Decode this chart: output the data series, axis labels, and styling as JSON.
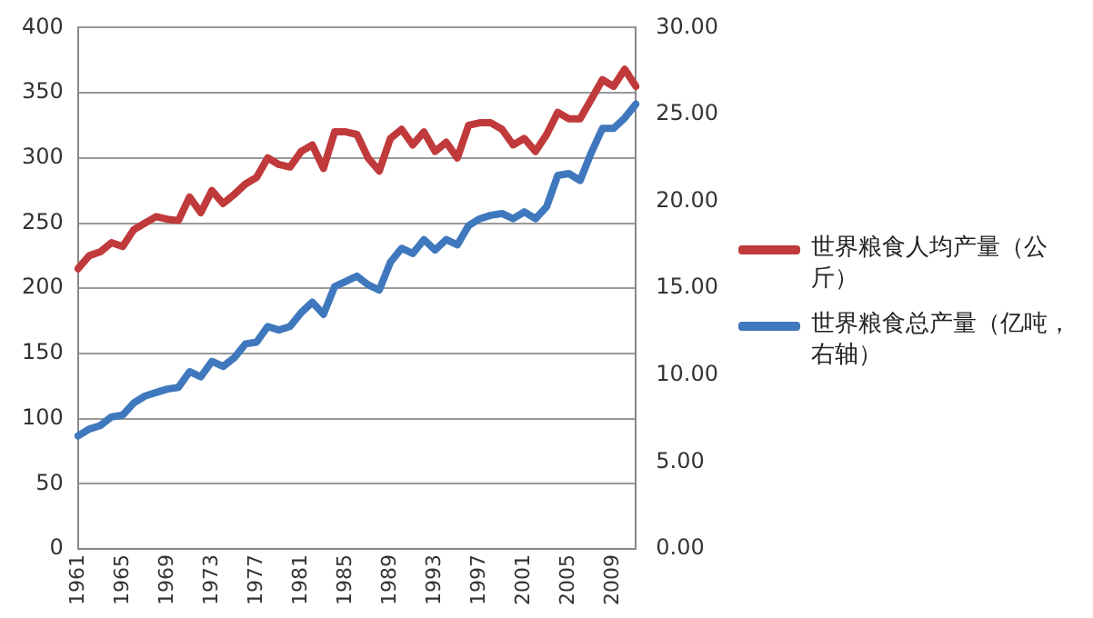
{
  "chart_data": {
    "type": "line",
    "categories": [
      "1961",
      null,
      null,
      null,
      "1965",
      null,
      null,
      null,
      "1969",
      null,
      null,
      null,
      "1973",
      null,
      null,
      null,
      "1977",
      null,
      null,
      null,
      "1981",
      null,
      null,
      null,
      "1985",
      null,
      null,
      null,
      "1989",
      null,
      null,
      null,
      "1993",
      null,
      null,
      null,
      "1997",
      null,
      null,
      null,
      "2001",
      null,
      null,
      null,
      "2005",
      null,
      null,
      null,
      "2009",
      null,
      null
    ],
    "series": [
      {
        "name": "世界粮食人均产量（公斤）",
        "color": "#c0393b",
        "values": [
          215,
          225,
          228,
          235,
          232,
          245,
          250,
          255,
          253,
          252,
          270,
          258,
          275,
          265,
          272,
          280,
          285,
          300,
          295,
          293,
          305,
          310,
          292,
          320,
          320,
          318,
          300,
          290,
          315,
          322,
          310,
          320,
          305,
          312,
          300,
          325,
          327,
          327,
          322,
          310,
          315,
          305,
          318,
          335,
          330,
          330,
          345,
          360,
          355,
          368,
          355
        ]
      },
      {
        "name": "世界粮食总产量（亿吨，右轴）",
        "color": "#3f78bd",
        "axis": "y2",
        "values": [
          6.5,
          6.9,
          7.1,
          7.6,
          7.7,
          8.4,
          8.8,
          9.0,
          9.2,
          9.3,
          10.2,
          9.9,
          10.8,
          10.5,
          11.0,
          11.8,
          11.9,
          12.8,
          12.6,
          12.8,
          13.6,
          14.2,
          13.5,
          15.1,
          15.4,
          15.7,
          15.2,
          14.9,
          16.5,
          17.3,
          17.0,
          17.8,
          17.2,
          17.8,
          17.5,
          18.6,
          19.0,
          19.2,
          19.3,
          19.0,
          19.4,
          19.0,
          19.7,
          21.5,
          21.6,
          21.2,
          22.8,
          24.2,
          24.2,
          24.8,
          25.6
        ]
      }
    ],
    "ylim": [
      0,
      400
    ],
    "yticks": [
      0,
      50,
      100,
      150,
      200,
      250,
      300,
      350,
      400
    ],
    "y2lim": [
      0,
      30
    ],
    "y2ticks": [
      {
        "value": 0,
        "label": "0.00"
      },
      {
        "value": 5,
        "label": "5.00"
      },
      {
        "value": 10,
        "label": "10.00"
      },
      {
        "value": 15,
        "label": "15.00"
      },
      {
        "value": 20,
        "label": "20.00"
      },
      {
        "value": 25,
        "label": "25.00"
      },
      {
        "value": 30,
        "label": "30.00"
      }
    ],
    "grid": "y",
    "legend": "right",
    "marker": "none",
    "line_style": "solid"
  }
}
